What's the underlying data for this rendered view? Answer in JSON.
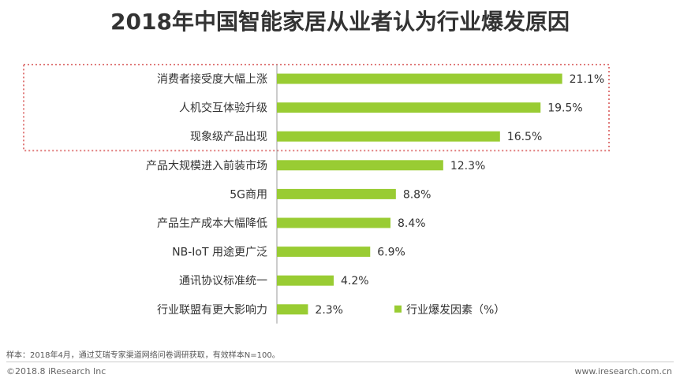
{
  "title": "2018年中国智能家居从业者认为行业爆发原因",
  "colors": {
    "bar": "#99cc33",
    "highlight_border": "#e07b7b",
    "axis": "#999999"
  },
  "chart_data": {
    "type": "bar",
    "orientation": "horizontal",
    "categories": [
      "消费者接受度大幅上涨",
      "人机交互体验升级",
      "现象级产品出现",
      "产品大规模进入前装市场",
      "5G商用",
      "产品生产成本大幅降低",
      "NB-IoT 用途更广泛",
      "通讯协议标准统一",
      "行业联盟有更大影响力"
    ],
    "values": [
      21.1,
      19.5,
      16.5,
      12.3,
      8.8,
      8.4,
      6.9,
      4.2,
      2.3
    ],
    "value_labels": [
      "21.1%",
      "19.5%",
      "16.5%",
      "12.3%",
      "8.8%",
      "8.4%",
      "6.9%",
      "4.2%",
      "2.3%"
    ],
    "legend": "行业爆发因素（%）",
    "legend_placement": "bottom-right",
    "highlighted_categories": 3,
    "grid": false
  },
  "note": "样本：2018年4月，通过艾瑞专家渠道网络问卷调研获取，有效样本N=100。",
  "footer": {
    "copyright": "©2018.8 iResearch Inc",
    "website": "www.iresearch.com.cn"
  }
}
